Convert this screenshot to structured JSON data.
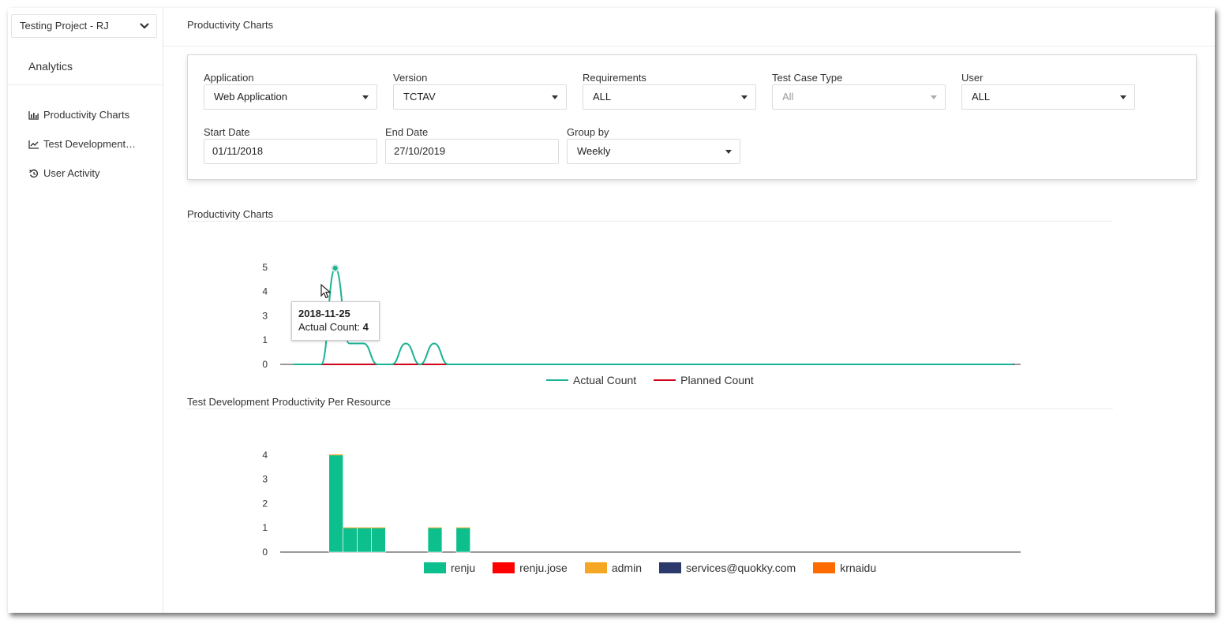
{
  "sidebar": {
    "project": "Testing Project - RJ",
    "section": "Analytics",
    "items": [
      {
        "label": "Productivity Charts",
        "icon": "bar-chart-icon"
      },
      {
        "label": "Test Development…",
        "icon": "line-chart-icon"
      },
      {
        "label": "User Activity",
        "icon": "history-icon"
      }
    ]
  },
  "header": {
    "title": "Productivity Charts"
  },
  "filters": {
    "application": {
      "label": "Application",
      "value": "Web Application"
    },
    "version": {
      "label": "Version",
      "value": "TCTAV"
    },
    "requirements": {
      "label": "Requirements",
      "value": "ALL"
    },
    "test_case_type": {
      "label": "Test Case Type",
      "value": "All"
    },
    "user": {
      "label": "User",
      "value": "ALL"
    },
    "start_date": {
      "label": "Start Date",
      "value": "01/11/2018"
    },
    "end_date": {
      "label": "End Date",
      "value": "27/10/2019"
    },
    "group_by": {
      "label": "Group by",
      "value": "Weekly"
    }
  },
  "sections": {
    "productivity": "Productivity Charts",
    "per_resource": "Test Development Productivity Per Resource"
  },
  "tooltip": {
    "date": "2018-11-25",
    "label": "Actual Count: ",
    "value": "4"
  },
  "colors": {
    "actual": "#1ab394",
    "planned": "#d0021b",
    "renju": "#0dbf8c",
    "renju_jose": "#ff0000",
    "admin": "#f5a623",
    "services": "#2b3a6b",
    "krnaidu": "#ff6a00"
  },
  "chart_data": [
    {
      "type": "line",
      "title": "",
      "yticks": [
        0,
        1,
        3,
        4,
        5
      ],
      "ylim": [
        0,
        5
      ],
      "x_count": 52,
      "series": [
        {
          "name": "Actual Count",
          "values": [
            0,
            0,
            0,
            4,
            1,
            1,
            0,
            0,
            1,
            0,
            1,
            0,
            0,
            0,
            0,
            0,
            0,
            0,
            0,
            0,
            0,
            0,
            0,
            0,
            0,
            0,
            0,
            0,
            0,
            0,
            0,
            0,
            0,
            0,
            0,
            0,
            0,
            0,
            0,
            0,
            0,
            0,
            0,
            0,
            0,
            0,
            0,
            0,
            0,
            0,
            0,
            0
          ]
        },
        {
          "name": "Planned Count",
          "values": [
            0,
            0,
            0,
            0,
            0,
            0,
            0,
            0,
            0,
            0,
            0,
            0,
            0,
            0,
            0,
            0,
            0,
            0,
            0,
            0,
            0,
            0,
            0,
            0,
            0,
            0,
            0,
            0,
            0,
            0,
            0,
            0,
            0,
            0,
            0,
            0,
            0,
            0,
            0,
            0,
            0,
            0,
            0,
            0,
            0,
            0,
            0,
            0,
            0,
            0,
            0,
            0
          ]
        }
      ],
      "legend": "bottom"
    },
    {
      "type": "bar",
      "title": "",
      "yticks": [
        0,
        1,
        2,
        3,
        4
      ],
      "ylim": [
        0,
        4
      ],
      "x_count": 52,
      "series": [
        {
          "name": "renju",
          "values": [
            0,
            0,
            0,
            4,
            1,
            1,
            1,
            0,
            0,
            0,
            1,
            0,
            1,
            0,
            0,
            0,
            0,
            0,
            0,
            0,
            0,
            0,
            0,
            0,
            0,
            0,
            0,
            0,
            0,
            0,
            0,
            0,
            0,
            0,
            0,
            0,
            0,
            0,
            0,
            0,
            0,
            0,
            0,
            0,
            0,
            0,
            0,
            0,
            0,
            0,
            0,
            0
          ]
        },
        {
          "name": "renju.jose",
          "values": []
        },
        {
          "name": "admin",
          "values": []
        },
        {
          "name": "services@quokky.com",
          "values": []
        },
        {
          "name": "krnaidu",
          "values": []
        }
      ],
      "legend": "bottom"
    }
  ]
}
